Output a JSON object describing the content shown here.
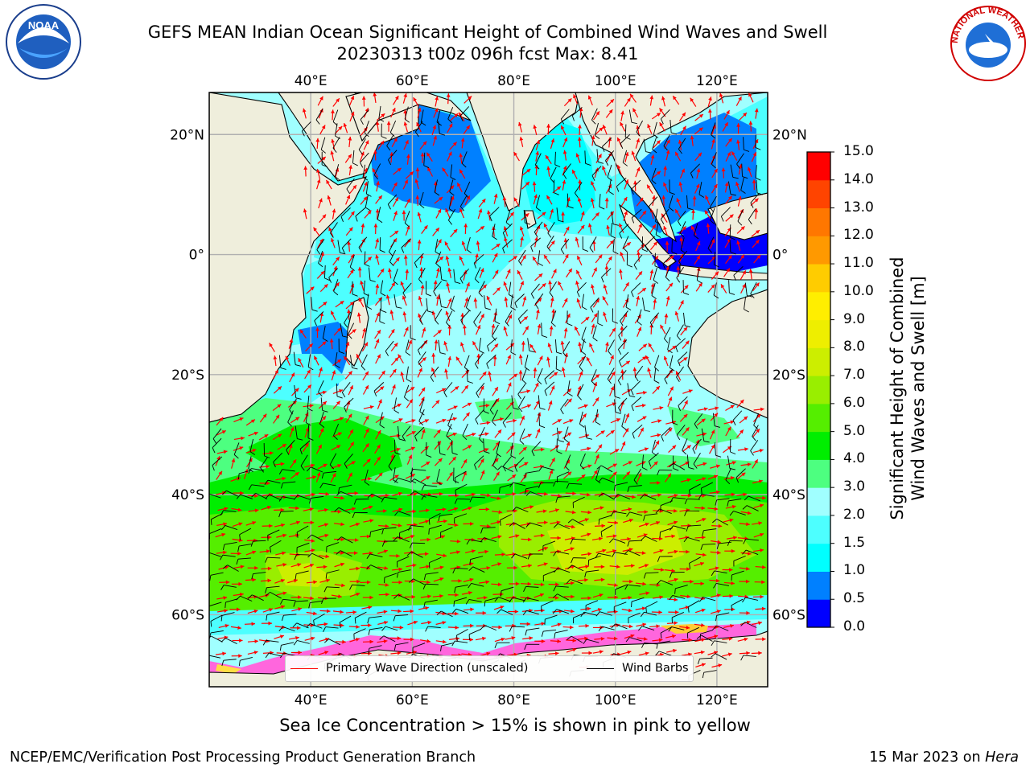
{
  "header": {
    "title_line1": "GEFS MEAN Indian Ocean Significant Height of Combined Wind Waves and Swell",
    "title_line2": "20230313 t00z 096h fcst   Max: 8.41"
  },
  "logos": {
    "left": "noaa-logo",
    "right": "nws-logo",
    "left_text": "NOAA",
    "right_text": "NATIONAL WEATHER SERVICE"
  },
  "map": {
    "lon_labels": [
      "40°E",
      "60°E",
      "80°E",
      "100°E",
      "120°E"
    ],
    "lon_values": [
      40,
      60,
      80,
      100,
      120
    ],
    "lat_labels": [
      "20°N",
      "0°",
      "20°S",
      "40°S",
      "60°S"
    ],
    "lat_values": [
      20,
      0,
      -20,
      -40,
      -60
    ],
    "lon_range": [
      20,
      130
    ],
    "lat_range": [
      27,
      -72
    ],
    "colors": {
      "land": "#efeedc",
      "grid": "#b0b0b0",
      "wave_arrow": "#ff0000",
      "wind_barb": "#000000"
    }
  },
  "legend": {
    "wave_label": "Primary Wave Direction (unscaled)",
    "barb_label": "Wind Barbs"
  },
  "colorbar": {
    "title_line1": "Significant Height of Combined",
    "title_line2": "Wind Waves and Swell [m]",
    "labels": [
      "15.0",
      "14.0",
      "13.0",
      "12.0",
      "11.0",
      "10.0",
      "9.0",
      "8.0",
      "7.0",
      "6.0",
      "5.0",
      "4.0",
      "3.0",
      "2.0",
      "1.5",
      "1.0",
      "0.5",
      "0.0"
    ],
    "colors": [
      "#0000ff",
      "#0080ff",
      "#00ffff",
      "#4dffff",
      "#a0ffff",
      "#4dff80",
      "#00ee00",
      "#55ee00",
      "#99ee00",
      "#ccee00",
      "#eeee00",
      "#ffee00",
      "#ffcc00",
      "#ff9900",
      "#ff7700",
      "#ff4400",
      "#ff0000"
    ]
  },
  "footer": {
    "sea_ice_note": "Sea Ice Concentration > 15% is shown in pink to yellow",
    "branch": "NCEP/EMC/Verification Post Processing Product Generation Branch",
    "date": "15 Mar 2023 on ",
    "host": "Hera"
  }
}
